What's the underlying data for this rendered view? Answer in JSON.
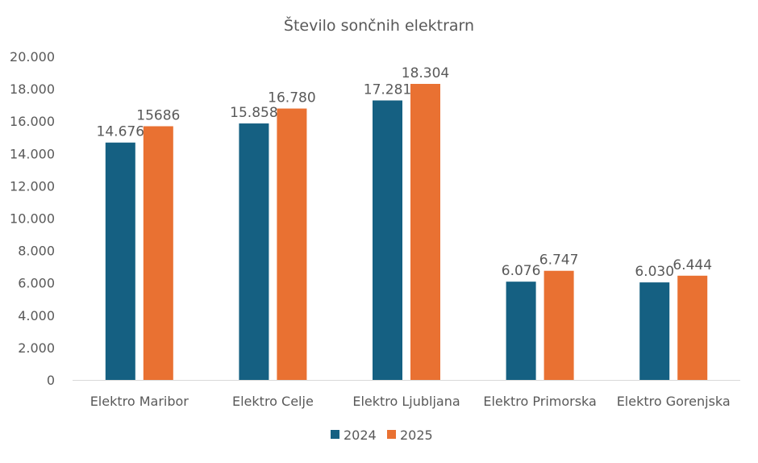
{
  "chart_data": {
    "type": "bar",
    "title": "Število sončnih elektrarn",
    "xlabel": "",
    "ylabel": "",
    "categories": [
      "Elektro Maribor",
      "Elektro Celje",
      "Elektro Ljubljana",
      "Elektro Primorska",
      "Elektro Gorenjska"
    ],
    "series": [
      {
        "name": "2024",
        "color": "#156082",
        "values": [
          14676,
          15858,
          17281,
          6076,
          6030
        ],
        "labels": [
          "14.676",
          "15.858",
          "17.281",
          "6.076",
          "6.030"
        ]
      },
      {
        "name": "2025",
        "color": "#E97132",
        "values": [
          15686,
          16780,
          18304,
          6747,
          6444
        ],
        "labels": [
          "15686",
          "16.780",
          "18.304",
          "6.747",
          "6.444"
        ]
      }
    ],
    "ylim": [
      0,
      20000
    ],
    "yticks": [
      "0",
      "2.000",
      "4.000",
      "6.000",
      "8.000",
      "10.000",
      "12.000",
      "14.000",
      "16.000",
      "18.000",
      "20.000"
    ],
    "grid": false,
    "legend": "bottom"
  }
}
